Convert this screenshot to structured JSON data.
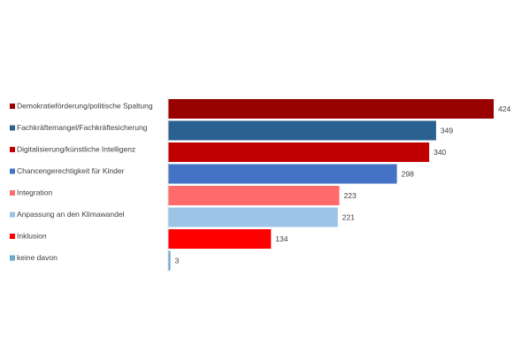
{
  "chart_data": {
    "type": "bar",
    "orientation": "horizontal",
    "categories": [
      "Demokratieförderung/politische Spaltung",
      "Fachkräftemangel/Fachkräftesicherung",
      "Digitalisierung/künstliche Intelligenz",
      "Chancengerechtigkeit für Kinder",
      "Integration",
      "Anpassung an den Klimawandel",
      "Inklusion",
      "keine davon"
    ],
    "values": [
      424,
      349,
      340,
      298,
      223,
      221,
      134,
      3
    ],
    "colors": [
      "#990000",
      "#2B6190",
      "#C00000",
      "#4472C4",
      "#FF6B6B",
      "#9DC3E6",
      "#FF0000",
      "#6CA6CD"
    ],
    "xlim": [
      0,
      424
    ],
    "title": "",
    "xlabel": "",
    "ylabel": "",
    "grid": false,
    "legend": "none",
    "data_labels": true
  }
}
